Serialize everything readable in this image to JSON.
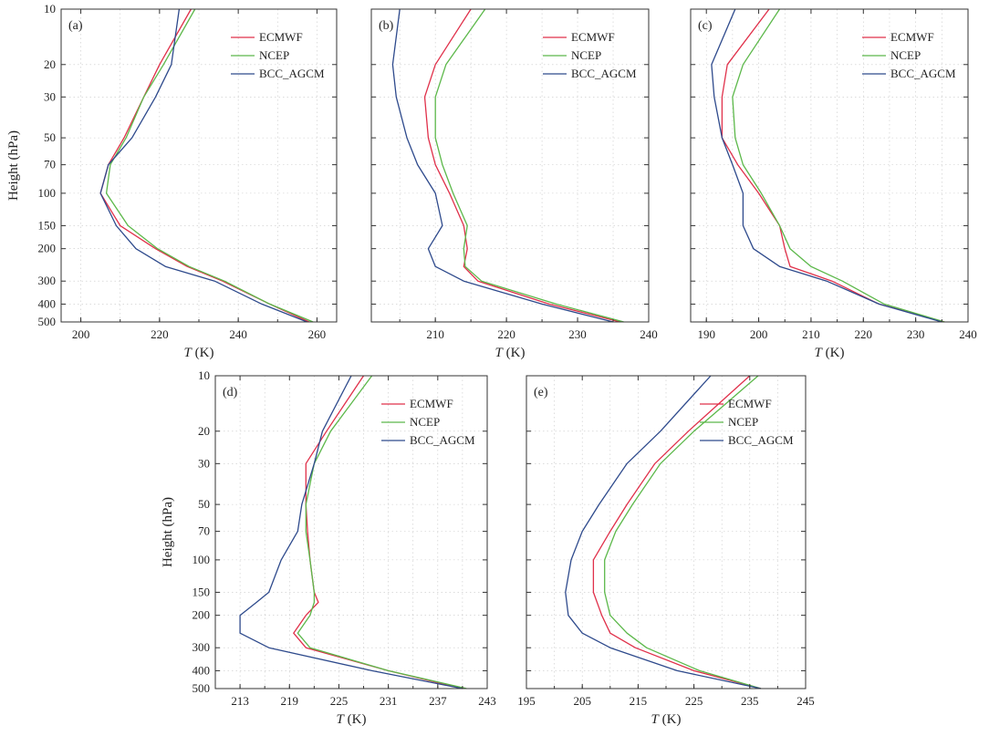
{
  "colors": {
    "ECMWF": "#e0304a",
    "NCEP": "#5cb84a",
    "BCC_AGCM": "#2e4a8c"
  },
  "chart_data": [
    {
      "type": "line",
      "panel_label": "(a)",
      "xlabel": "T (K)",
      "ylabel": "Height (hPa)",
      "xlim": [
        195,
        265
      ],
      "xticks": [
        200,
        220,
        240,
        260
      ],
      "ylim": [
        500,
        10
      ],
      "yscale": "log",
      "yticks": [
        10,
        20,
        30,
        50,
        70,
        100,
        150,
        200,
        300,
        400,
        500
      ],
      "grid": true,
      "legend": "top-right",
      "y": [
        10,
        20,
        30,
        50,
        70,
        100,
        150,
        200,
        250,
        300,
        400,
        500
      ],
      "series": [
        {
          "name": "ECMWF",
          "values": [
            228,
            220,
            216,
            211,
            207,
            205,
            210,
            219,
            227,
            236,
            248,
            258
          ]
        },
        {
          "name": "NCEP",
          "values": [
            229,
            221,
            216,
            211.5,
            207.5,
            206.5,
            212,
            219.5,
            227.5,
            236.5,
            248,
            259
          ]
        },
        {
          "name": "BCC_AGCM",
          "values": [
            225,
            223,
            219,
            213,
            207,
            205,
            209,
            214,
            221.5,
            234,
            246,
            257.5
          ]
        }
      ]
    },
    {
      "type": "line",
      "panel_label": "(b)",
      "xlabel": "T (K)",
      "ylabel": "",
      "xlim": [
        201,
        240
      ],
      "xticks": [
        210,
        220,
        230,
        240
      ],
      "ylim": [
        500,
        10
      ],
      "yscale": "log",
      "yticks": [
        10,
        20,
        30,
        50,
        70,
        100,
        150,
        200,
        300,
        400,
        500
      ],
      "grid": true,
      "legend": "top-right",
      "y": [
        10,
        20,
        30,
        50,
        70,
        100,
        150,
        200,
        250,
        300,
        400,
        500
      ],
      "series": [
        {
          "name": "ECMWF",
          "values": [
            215,
            210,
            208.5,
            209,
            210,
            212,
            214,
            214.5,
            214,
            216,
            226,
            236
          ]
        },
        {
          "name": "NCEP",
          "values": [
            217,
            211.5,
            210,
            210,
            211,
            212.5,
            214.5,
            214,
            214.2,
            216.5,
            227,
            236.5
          ]
        },
        {
          "name": "BCC_AGCM",
          "values": [
            205,
            204,
            204.5,
            206,
            207.5,
            210,
            211,
            209,
            210,
            214,
            225,
            235
          ]
        }
      ]
    },
    {
      "type": "line",
      "panel_label": "(c)",
      "xlabel": "T (K)",
      "ylabel": "",
      "xlim": [
        187,
        240
      ],
      "xticks": [
        190,
        200,
        210,
        220,
        230,
        240
      ],
      "ylim": [
        500,
        10
      ],
      "yscale": "log",
      "yticks": [
        10,
        20,
        30,
        50,
        70,
        100,
        150,
        200,
        300,
        400,
        500
      ],
      "grid": true,
      "legend": "top-right",
      "y": [
        10,
        20,
        30,
        50,
        70,
        100,
        150,
        200,
        250,
        300,
        400,
        500
      ],
      "series": [
        {
          "name": "ECMWF",
          "values": [
            202,
            194,
            193,
            193,
            196,
            200,
            204,
            205,
            206,
            214,
            223,
            235.5
          ]
        },
        {
          "name": "NCEP",
          "values": [
            204,
            197,
            195,
            195.5,
            197,
            200.5,
            204,
            206,
            210,
            216,
            224,
            235.5
          ]
        },
        {
          "name": "BCC_AGCM",
          "values": [
            195.5,
            191,
            191.5,
            193,
            195,
            197,
            197,
            199,
            204,
            213,
            223,
            235
          ]
        }
      ]
    },
    {
      "type": "line",
      "panel_label": "(d)",
      "xlabel": "T (K)",
      "ylabel": "Height (hPa)",
      "xlim": [
        210,
        243
      ],
      "xticks": [
        213,
        219,
        225,
        231,
        237,
        243
      ],
      "ylim": [
        500,
        10
      ],
      "yscale": "log",
      "yticks": [
        10,
        20,
        30,
        50,
        70,
        100,
        150,
        200,
        300,
        400,
        500
      ],
      "grid": true,
      "legend": "top-right",
      "y": [
        10,
        20,
        30,
        50,
        70,
        100,
        150,
        170,
        200,
        250,
        300,
        400,
        500
      ],
      "series": [
        {
          "name": "ECMWF",
          "values": [
            228,
            223.5,
            221,
            221,
            221.2,
            221.5,
            222,
            222.5,
            221,
            219.5,
            221,
            231,
            240
          ]
        },
        {
          "name": "NCEP",
          "values": [
            229,
            224,
            222,
            221,
            221,
            221.5,
            222,
            222,
            221.5,
            220,
            221.5,
            231,
            240.5
          ]
        },
        {
          "name": "BCC_AGCM",
          "values": [
            226.5,
            223,
            222,
            220.5,
            220,
            218,
            216.5,
            215,
            213,
            213,
            216.5,
            229,
            240
          ]
        }
      ]
    },
    {
      "type": "line",
      "panel_label": "(e)",
      "xlabel": "T (K)",
      "ylabel": "",
      "xlim": [
        195,
        245
      ],
      "xticks": [
        195,
        205,
        215,
        225,
        235,
        245
      ],
      "ylim": [
        500,
        10
      ],
      "yscale": "log",
      "yticks": [
        10,
        20,
        30,
        50,
        70,
        100,
        150,
        200,
        300,
        400,
        500
      ],
      "grid": true,
      "legend": "top-right",
      "y": [
        10,
        20,
        30,
        50,
        70,
        100,
        150,
        200,
        250,
        300,
        400,
        500
      ],
      "series": [
        {
          "name": "ECMWF",
          "values": [
            235,
            224,
            218,
            213,
            210,
            207,
            207,
            208.5,
            210,
            214.5,
            225,
            237
          ]
        },
        {
          "name": "NCEP",
          "values": [
            236.5,
            225,
            219,
            214,
            211,
            209,
            209,
            210,
            213,
            216.5,
            226,
            237
          ]
        },
        {
          "name": "BCC_AGCM",
          "values": [
            228,
            219,
            213,
            208,
            205,
            203,
            202,
            202.5,
            205,
            210,
            222,
            237
          ]
        }
      ]
    }
  ]
}
